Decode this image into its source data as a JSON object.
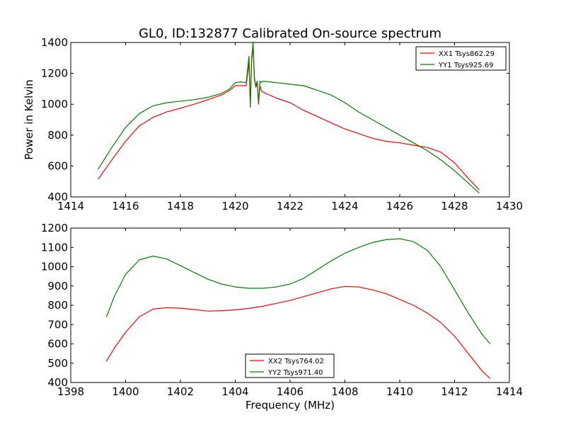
{
  "figure": {
    "title": "GL0, ID:132877 Calibrated On-source spectrum",
    "ylabel": "Power in Kelvin",
    "xlabel": "Frequency (MHz)"
  },
  "chart_data": [
    {
      "type": "line",
      "xlim": [
        1414,
        1430
      ],
      "ylim": [
        400,
        1400
      ],
      "xticks": [
        1414,
        1416,
        1418,
        1420,
        1422,
        1424,
        1426,
        1428,
        1430
      ],
      "yticks": [
        400,
        600,
        800,
        1000,
        1200,
        1400
      ],
      "ylabel": "Power in Kelvin",
      "legend_position": "top-right",
      "series": [
        {
          "name": "XX1 Tsys862.29",
          "color": "#ff0000",
          "x": [
            1415.0,
            1415.5,
            1416.0,
            1416.5,
            1417.0,
            1417.5,
            1418.0,
            1418.5,
            1419.0,
            1419.5,
            1419.8,
            1420.0,
            1420.2,
            1420.4,
            1420.5,
            1420.55,
            1420.6,
            1420.65,
            1420.7,
            1420.75,
            1420.8,
            1420.85,
            1420.9,
            1420.95,
            1421.0,
            1421.5,
            1422.0,
            1422.5,
            1423.0,
            1423.5,
            1424.0,
            1424.5,
            1425.0,
            1425.5,
            1426.0,
            1426.5,
            1427.0,
            1427.5,
            1428.0,
            1428.5,
            1428.9
          ],
          "y": [
            515,
            640,
            760,
            860,
            915,
            950,
            975,
            1000,
            1030,
            1060,
            1090,
            1120,
            1120,
            1120,
            1270,
            980,
            1290,
            1370,
            1160,
            1110,
            1140,
            1000,
            1120,
            1090,
            1080,
            1040,
            1010,
            960,
            920,
            880,
            840,
            810,
            780,
            760,
            750,
            735,
            720,
            690,
            620,
            520,
            445
          ]
        },
        {
          "name": "YY1 Tsys925.69",
          "color": "#008000",
          "x": [
            1415.0,
            1415.5,
            1416.0,
            1416.5,
            1417.0,
            1417.5,
            1418.0,
            1418.5,
            1419.0,
            1419.5,
            1419.8,
            1420.0,
            1420.2,
            1420.4,
            1420.5,
            1420.55,
            1420.6,
            1420.65,
            1420.7,
            1420.75,
            1420.8,
            1420.85,
            1420.9,
            1420.95,
            1421.0,
            1421.5,
            1422.0,
            1422.5,
            1423.0,
            1423.5,
            1424.0,
            1424.5,
            1425.0,
            1425.5,
            1426.0,
            1426.5,
            1427.0,
            1427.5,
            1428.0,
            1428.5,
            1428.9
          ],
          "y": [
            580,
            720,
            850,
            940,
            990,
            1010,
            1020,
            1030,
            1045,
            1070,
            1100,
            1140,
            1145,
            1140,
            1310,
            1000,
            1300,
            1400,
            1170,
            1120,
            1150,
            1010,
            1150,
            1140,
            1150,
            1140,
            1130,
            1120,
            1090,
            1060,
            1010,
            950,
            900,
            850,
            800,
            750,
            700,
            640,
            570,
            490,
            425
          ]
        }
      ]
    },
    {
      "type": "line",
      "xlim": [
        1398,
        1414
      ],
      "ylim": [
        400,
        1200
      ],
      "xticks": [
        1398,
        1400,
        1402,
        1404,
        1406,
        1408,
        1410,
        1412,
        1414
      ],
      "yticks": [
        400,
        500,
        600,
        700,
        800,
        900,
        1000,
        1100,
        1200
      ],
      "xlabel": "Frequency (MHz)",
      "legend_position": "bottom-center",
      "series": [
        {
          "name": "XX2 Tsys764.02",
          "color": "#ff0000",
          "x": [
            1399.3,
            1399.6,
            1400.0,
            1400.5,
            1401.0,
            1401.5,
            1402.0,
            1402.5,
            1403.0,
            1403.5,
            1404.0,
            1404.5,
            1405.0,
            1405.5,
            1406.0,
            1406.5,
            1407.0,
            1407.5,
            1408.0,
            1408.5,
            1409.0,
            1409.5,
            1410.0,
            1410.5,
            1411.0,
            1411.5,
            1412.0,
            1412.5,
            1413.0,
            1413.3
          ],
          "y": [
            510,
            580,
            660,
            740,
            780,
            788,
            785,
            778,
            770,
            772,
            776,
            784,
            795,
            810,
            825,
            845,
            865,
            885,
            898,
            895,
            880,
            860,
            830,
            800,
            760,
            710,
            640,
            550,
            460,
            420
          ]
        },
        {
          "name": "YY2 Tsys971.40",
          "color": "#008000",
          "x": [
            1399.3,
            1399.6,
            1400.0,
            1400.5,
            1401.0,
            1401.5,
            1402.0,
            1402.5,
            1403.0,
            1403.5,
            1404.0,
            1404.5,
            1405.0,
            1405.5,
            1406.0,
            1406.5,
            1407.0,
            1407.5,
            1408.0,
            1408.5,
            1409.0,
            1409.5,
            1410.0,
            1410.5,
            1411.0,
            1411.5,
            1412.0,
            1412.5,
            1413.0,
            1413.3
          ],
          "y": [
            740,
            850,
            960,
            1035,
            1055,
            1040,
            1005,
            970,
            935,
            910,
            895,
            888,
            888,
            895,
            910,
            940,
            985,
            1030,
            1070,
            1100,
            1125,
            1140,
            1145,
            1130,
            1085,
            1000,
            880,
            760,
            650,
            600
          ]
        }
      ]
    }
  ]
}
